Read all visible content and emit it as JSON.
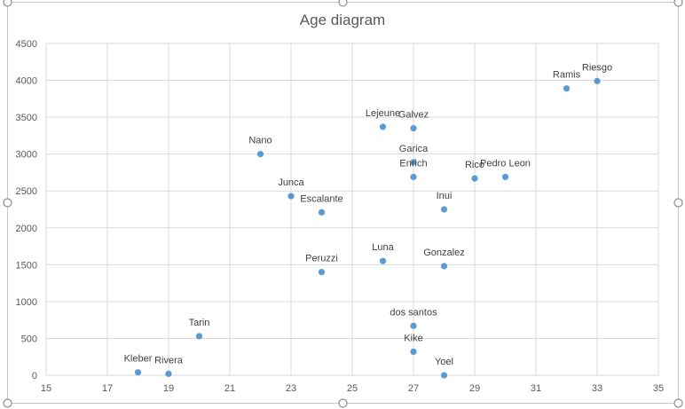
{
  "colors": {
    "marker": "#5b9bd5",
    "grid": "#d9d9d9",
    "text": "#595959",
    "frame": "#c6c6c6"
  },
  "chart_data": {
    "type": "scatter",
    "title": "Age diagram",
    "xlabel": "",
    "ylabel": "",
    "xlim": [
      15,
      35
    ],
    "ylim": [
      0,
      4500
    ],
    "xticks": [
      15,
      17,
      19,
      21,
      23,
      25,
      27,
      29,
      31,
      33,
      35
    ],
    "yticks": [
      0,
      500,
      1000,
      1500,
      2000,
      2500,
      3000,
      3500,
      4000,
      4500
    ],
    "grid": true,
    "legend": "none",
    "points": [
      {
        "label": "Kleber",
        "x": 18,
        "y": 40
      },
      {
        "label": "Rivera",
        "x": 19,
        "y": 20
      },
      {
        "label": "Tarin",
        "x": 20,
        "y": 530
      },
      {
        "label": "Nano",
        "x": 22,
        "y": 3000
      },
      {
        "label": "Junca",
        "x": 23,
        "y": 2430
      },
      {
        "label": "Escalante",
        "x": 24,
        "y": 2210
      },
      {
        "label": "Peruzzi",
        "x": 24,
        "y": 1400
      },
      {
        "label": "Lejeune",
        "x": 26,
        "y": 3370
      },
      {
        "label": "Luna",
        "x": 26,
        "y": 1550
      },
      {
        "label": "Galvez",
        "x": 27,
        "y": 3350
      },
      {
        "label": "Garica",
        "x": 27,
        "y": 2890
      },
      {
        "label": "Enrich",
        "x": 27,
        "y": 2690
      },
      {
        "label": "dos santos",
        "x": 27,
        "y": 670
      },
      {
        "label": "Kike",
        "x": 27,
        "y": 320
      },
      {
        "label": "Inui",
        "x": 28,
        "y": 2250
      },
      {
        "label": "Gonzalez",
        "x": 28,
        "y": 1480
      },
      {
        "label": "Yoel",
        "x": 28,
        "y": 0
      },
      {
        "label": "Rico",
        "x": 29,
        "y": 2670
      },
      {
        "label": "Pedro Leon",
        "x": 30,
        "y": 2690
      },
      {
        "label": "Ramis",
        "x": 32,
        "y": 3890
      },
      {
        "label": "Riesgo",
        "x": 33,
        "y": 3990
      }
    ]
  }
}
